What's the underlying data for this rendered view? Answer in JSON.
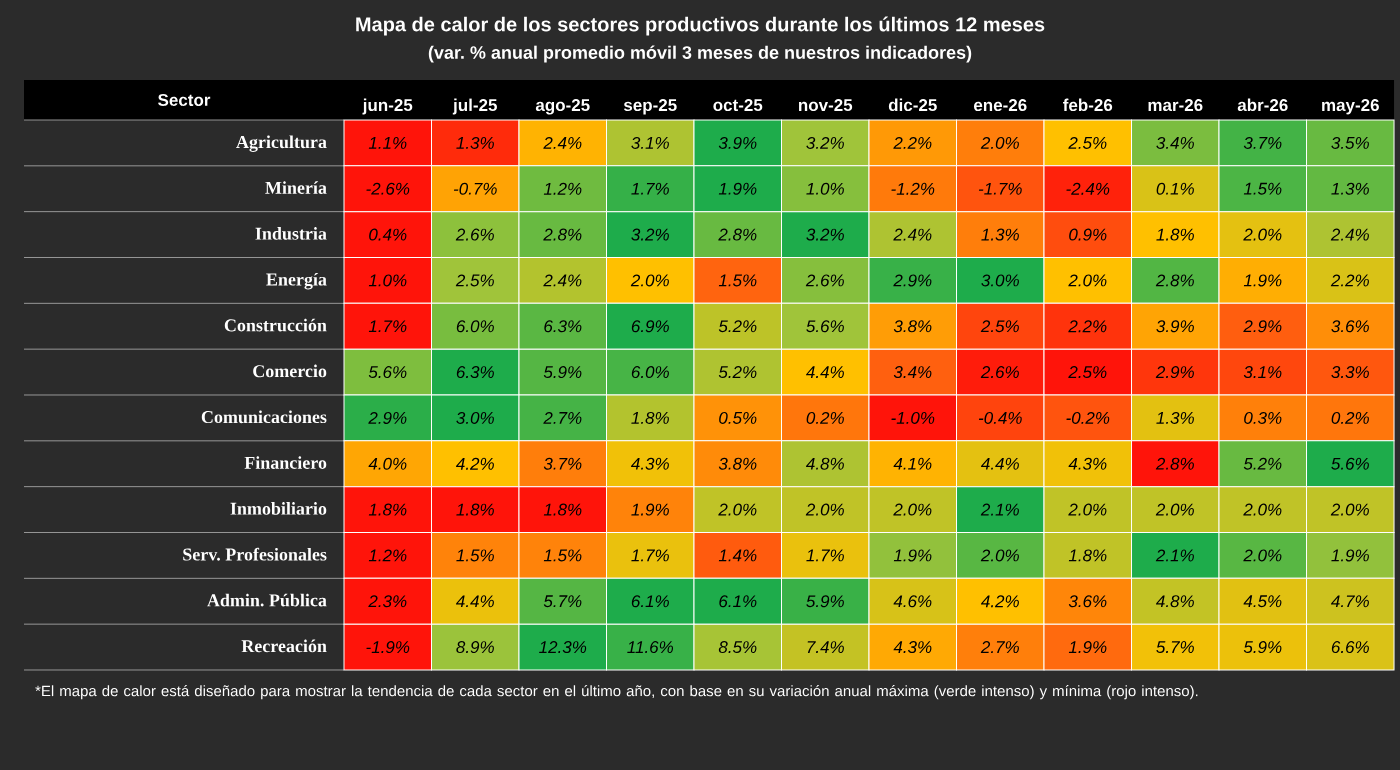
{
  "chart_data": {
    "type": "heatmap",
    "title": "Mapa de calor de los sectores productivos durante los últimos 12 meses",
    "subtitle": "(var. % anual promedio móvil 3 meses de nuestros indicadores)",
    "ylabel": "Sector",
    "categories": [
      "jun-25",
      "jul-25",
      "ago-25",
      "sep-25",
      "oct-25",
      "nov-25",
      "dic-25",
      "ene-26",
      "feb-26",
      "mar-26",
      "abr-26",
      "may-26"
    ],
    "y_categories": [
      "Agricultura",
      "Minería",
      "Industria",
      "Energía",
      "Construcción",
      "Comercio",
      "Comunicaciones",
      "Financiero",
      "Inmobiliario",
      "Serv. Profesionales",
      "Admin. Pública",
      "Recreación"
    ],
    "cells": [
      [
        1.1,
        1.3,
        2.4,
        3.1,
        3.9,
        3.2,
        2.2,
        2.0,
        2.5,
        3.4,
        3.7,
        3.5
      ],
      [
        -2.6,
        -0.7,
        1.2,
        1.7,
        1.9,
        1.0,
        -1.2,
        -1.7,
        -2.4,
        0.1,
        1.5,
        1.3
      ],
      [
        0.4,
        2.6,
        2.8,
        3.2,
        2.8,
        3.2,
        2.4,
        1.3,
        0.9,
        1.8,
        2.0,
        2.4
      ],
      [
        1.0,
        2.5,
        2.4,
        2.0,
        1.5,
        2.6,
        2.9,
        3.0,
        2.0,
        2.8,
        1.9,
        2.2
      ],
      [
        1.7,
        6.0,
        6.3,
        6.9,
        5.2,
        5.6,
        3.8,
        2.5,
        2.2,
        3.9,
        2.9,
        3.6
      ],
      [
        5.6,
        6.3,
        5.9,
        6.0,
        5.2,
        4.4,
        3.4,
        2.6,
        2.5,
        2.9,
        3.1,
        3.3
      ],
      [
        2.9,
        3.0,
        2.7,
        1.8,
        0.5,
        0.2,
        -1.0,
        -0.4,
        -0.2,
        1.3,
        0.3,
        0.2
      ],
      [
        4.0,
        4.2,
        3.7,
        4.3,
        3.8,
        4.8,
        4.1,
        4.4,
        4.3,
        2.8,
        5.2,
        5.6
      ],
      [
        1.8,
        1.8,
        1.8,
        1.9,
        2.0,
        2.0,
        2.0,
        2.1,
        2.0,
        2.0,
        2.0,
        2.0
      ],
      [
        1.2,
        1.5,
        1.5,
        1.7,
        1.4,
        1.7,
        1.9,
        2.0,
        1.8,
        2.1,
        2.0,
        1.9
      ],
      [
        2.3,
        4.4,
        5.7,
        6.1,
        6.1,
        5.9,
        4.6,
        4.2,
        3.6,
        4.8,
        4.5,
        4.7
      ],
      [
        -1.9,
        8.9,
        12.3,
        11.6,
        8.5,
        7.4,
        4.3,
        2.7,
        1.9,
        5.7,
        5.9,
        6.6
      ]
    ],
    "cell_labels": [
      [
        "1.1%",
        "1.3%",
        "2.4%",
        "3.1%",
        "3.9%",
        "3.2%",
        "2.2%",
        "2.0%",
        "2.5%",
        "3.4%",
        "3.7%",
        "3.5%"
      ],
      [
        "-2.6%",
        "-0.7%",
        "1.2%",
        "1.7%",
        "1.9%",
        "1.0%",
        "-1.2%",
        "-1.7%",
        "-2.4%",
        "0.1%",
        "1.5%",
        "1.3%"
      ],
      [
        "0.4%",
        "2.6%",
        "2.8%",
        "3.2%",
        "2.8%",
        "3.2%",
        "2.4%",
        "1.3%",
        "0.9%",
        "1.8%",
        "2.0%",
        "2.4%"
      ],
      [
        "1.0%",
        "2.5%",
        "2.4%",
        "2.0%",
        "1.5%",
        "2.6%",
        "2.9%",
        "3.0%",
        "2.0%",
        "2.8%",
        "1.9%",
        "2.2%"
      ],
      [
        "1.7%",
        "6.0%",
        "6.3%",
        "6.9%",
        "5.2%",
        "5.6%",
        "3.8%",
        "2.5%",
        "2.2%",
        "3.9%",
        "2.9%",
        "3.6%"
      ],
      [
        "5.6%",
        "6.3%",
        "5.9%",
        "6.0%",
        "5.2%",
        "4.4%",
        "3.4%",
        "2.6%",
        "2.5%",
        "2.9%",
        "3.1%",
        "3.3%"
      ],
      [
        "2.9%",
        "3.0%",
        "2.7%",
        "1.8%",
        "0.5%",
        "0.2%",
        "-1.0%",
        "-0.4%",
        "-0.2%",
        "1.3%",
        "0.3%",
        "0.2%"
      ],
      [
        "4.0%",
        "4.2%",
        "3.7%",
        "4.3%",
        "3.8%",
        "4.8%",
        "4.1%",
        "4.4%",
        "4.3%",
        "2.8%",
        "5.2%",
        "5.6%"
      ],
      [
        "1.8%",
        "1.8%",
        "1.8%",
        "1.9%",
        "2.0%",
        "2.0%",
        "2.0%",
        "2.1%",
        "2.0%",
        "2.0%",
        "2.0%",
        "2.0%"
      ],
      [
        "1.2%",
        "1.5%",
        "1.5%",
        "1.7%",
        "1.4%",
        "1.7%",
        "1.9%",
        "2.0%",
        "1.8%",
        "2.1%",
        "2.0%",
        "1.9%"
      ],
      [
        "2.3%",
        "4.4%",
        "5.7%",
        "6.1%",
        "6.1%",
        "5.9%",
        "4.6%",
        "4.2%",
        "3.6%",
        "4.8%",
        "4.5%",
        "4.7%"
      ],
      [
        "-1.9%",
        "8.9%",
        "12.3%",
        "11.6%",
        "8.5%",
        "7.4%",
        "4.3%",
        "2.7%",
        "1.9%",
        "5.7%",
        "5.9%",
        "6.6%"
      ]
    ],
    "annotations": [
      "*El mapa de calor está diseñado para mostrar la tendencia de cada sector en el último año, con base en su variación anual máxima (verde intenso) y mínima (rojo intenso)."
    ]
  }
}
